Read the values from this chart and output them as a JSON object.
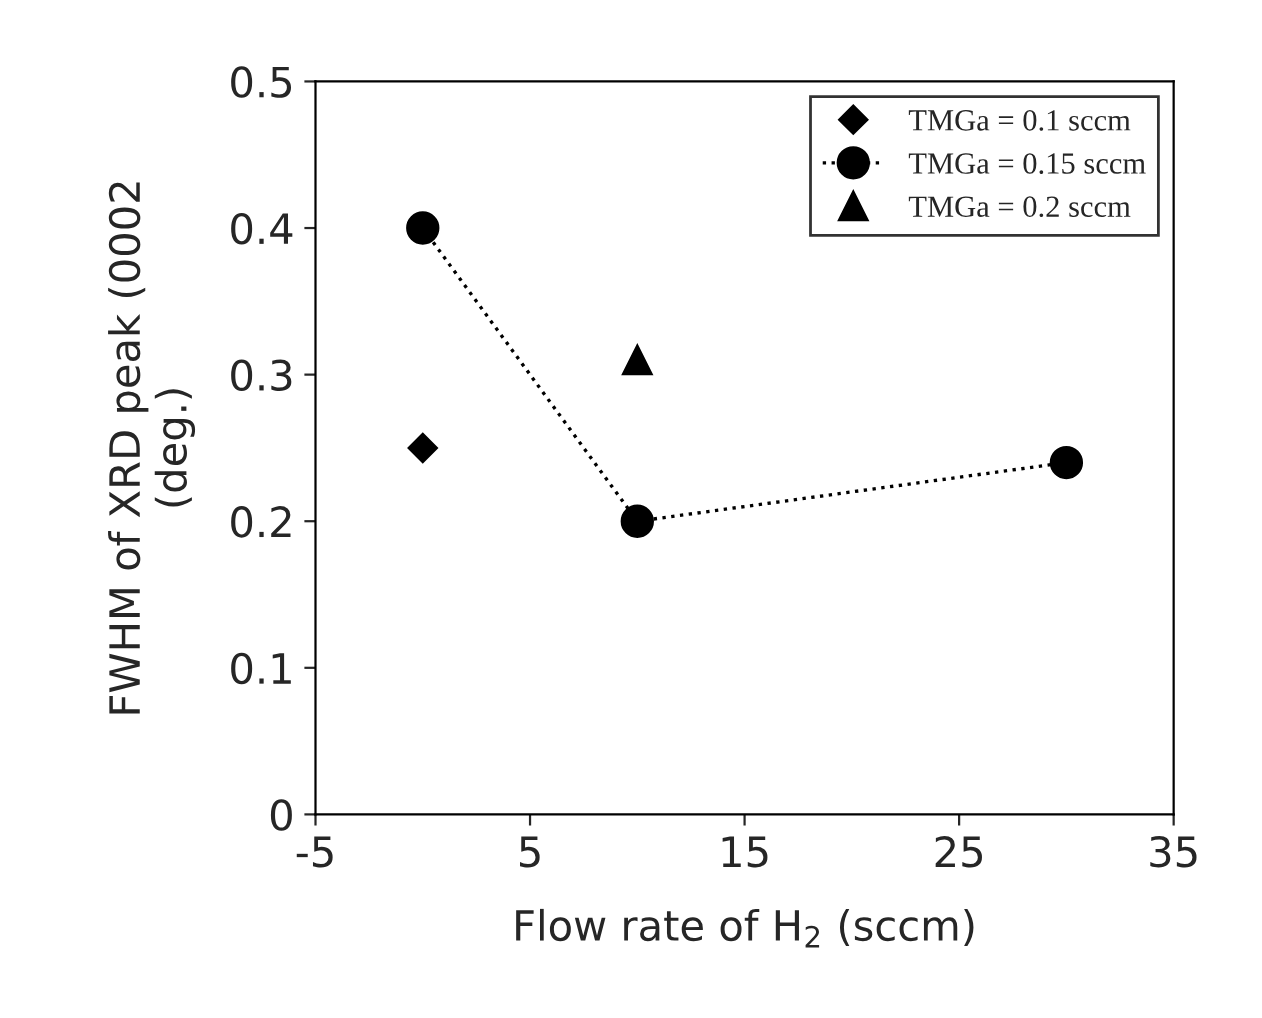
{
  "chart_data": {
    "type": "scatter",
    "xlabel": "Flow rate of H$_{2}$ (sccm)",
    "ylabel": "FWHM of XRD peak (0002\n(deg.)",
    "xlim": [
      -5,
      35
    ],
    "xticks": [
      -5,
      5,
      15,
      25,
      35
    ],
    "ylim": [
      0,
      0.5
    ],
    "yticks": [
      0,
      0.1,
      0.2,
      0.3,
      0.4,
      0.5
    ],
    "grid": false,
    "legend": "top right",
    "series": [
      {
        "name": "TMGa = 0.1 sccm",
        "marker": "diamond",
        "color": "#000000",
        "x": [
          0
        ],
        "values": [
          0.25
        ]
      },
      {
        "name": "TMGa = 0.15 sccm",
        "type": "line",
        "marker": "circle",
        "line_style": "dotted",
        "color": "#000000",
        "x": [
          0,
          10,
          30
        ],
        "values": [
          0.4,
          0.2,
          0.24
        ]
      },
      {
        "name": "TMGa = 0.2 sccm",
        "marker": "triangle",
        "color": "#000000",
        "x": [
          10
        ],
        "values": [
          0.31
        ]
      }
    ]
  }
}
